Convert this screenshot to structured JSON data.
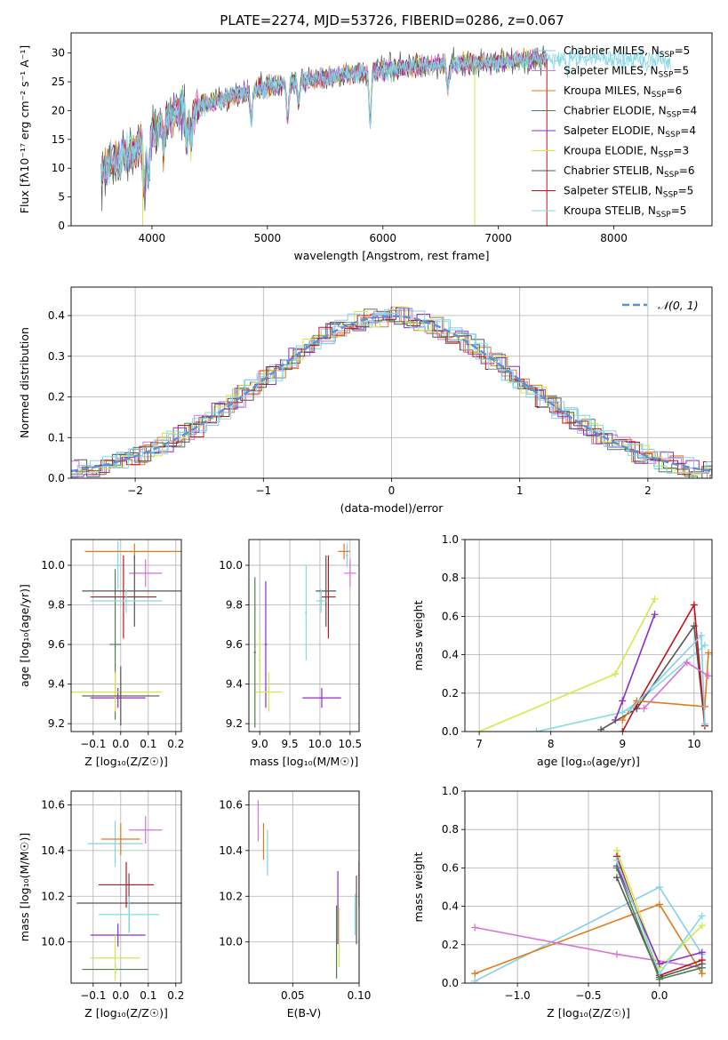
{
  "title": "PLATE=2274, MJD=53726, FIBERID=0286, z=0.067",
  "colors": {
    "Chabrier MILES": "#87CEEB",
    "Salpeter MILES": "#DA70D6",
    "Kroupa MILES": "#E07B1A",
    "Chabrier ELODIE": "#4E7F4E",
    "Salpeter ELODIE": "#8B2FC9",
    "Kroupa ELODIE": "#D4E84A",
    "Chabrier STELIB": "#555555",
    "Salpeter STELIB": "#C0151B",
    "Kroupa STELIB": "#7FDDE0",
    "normal": "#5B8FD9"
  },
  "chart_data": [
    {
      "id": "spectrum",
      "type": "line",
      "xlabel": "wavelength [Angstrom, rest frame]",
      "ylabel": "Flux [fλ10⁻¹⁷ erg cm⁻² s⁻¹ A⁻¹]",
      "xlim": [
        3300,
        8850
      ],
      "ylim": [
        0,
        33.5
      ],
      "xticks": [
        4000,
        5000,
        6000,
        7000,
        8000
      ],
      "yticks": [
        0,
        5,
        10,
        15,
        20,
        25,
        30
      ],
      "legend_position": "top-right",
      "legend": [
        {
          "name": "Chabrier MILES",
          "nssp": "5",
          "sample": "Chabrier MILES"
        },
        {
          "name": "Salpeter MILES",
          "nssp": "5",
          "sample": "Salpeter MILES"
        },
        {
          "name": "Kroupa MILES",
          "nssp": "6",
          "sample": "Kroupa MILES"
        },
        {
          "name": "Chabrier ELODIE",
          "nssp": "4",
          "sample": "Chabrier ELODIE"
        },
        {
          "name": "Salpeter ELODIE",
          "nssp": "4",
          "sample": "Salpeter ELODIE"
        },
        {
          "name": "Kroupa ELODIE",
          "nssp": "3",
          "sample": "Kroupa ELODIE"
        },
        {
          "name": "Chabrier STELIB",
          "nssp": "6",
          "sample": "Chabrier STELIB"
        },
        {
          "name": "Salpeter STELIB",
          "nssp": "5",
          "sample": "Salpeter STELIB"
        },
        {
          "name": "Kroupa STELIB",
          "nssp": "5",
          "sample": "Kroupa STELIB"
        }
      ],
      "continuum": [
        [
          3560,
          9
        ],
        [
          3650,
          11
        ],
        [
          3750,
          12
        ],
        [
          3850,
          13
        ],
        [
          3950,
          15
        ],
        [
          4050,
          17
        ],
        [
          4150,
          19
        ],
        [
          4250,
          20
        ],
        [
          4350,
          20
        ],
        [
          4450,
          21
        ],
        [
          4600,
          22
        ],
        [
          4800,
          23
        ],
        [
          5000,
          24
        ],
        [
          5200,
          25
        ],
        [
          5400,
          25.5
        ],
        [
          5600,
          26
        ],
        [
          5800,
          26.5
        ],
        [
          6000,
          27
        ],
        [
          6200,
          27.5
        ],
        [
          6500,
          28
        ],
        [
          6800,
          28.3
        ],
        [
          7100,
          28.5
        ],
        [
          7400,
          29
        ],
        [
          7700,
          29
        ],
        [
          8000,
          29
        ],
        [
          8300,
          28.8
        ],
        [
          8500,
          28.5
        ]
      ]
    },
    {
      "id": "residuals",
      "type": "histogram",
      "xlabel": "(data-model)/error",
      "ylabel": "Normed distribution",
      "xlim": [
        -2.5,
        2.5
      ],
      "ylim": [
        0,
        0.47
      ],
      "xticks": [
        -2,
        -1,
        0,
        1,
        2
      ],
      "yticks": [
        0.0,
        0.1,
        0.2,
        0.3,
        0.4
      ],
      "normal_label": "𝒩(0, 1)",
      "legend_position": "top-right"
    },
    {
      "id": "age_vs_Z",
      "type": "errorbar",
      "xlabel": "Z [log₁₀(Z/Z☉)]",
      "ylabel": "age  [log₁₀(age/yr)]",
      "xlim": [
        -0.18,
        0.22
      ],
      "ylim": [
        9.16,
        10.13
      ],
      "xticks": [
        -0.1,
        0.0,
        0.1,
        0.2
      ],
      "yticks": [
        9.2,
        9.4,
        9.6,
        9.8,
        10.0
      ],
      "points": [
        {
          "s": "Chabrier MILES",
          "x": -0.01,
          "xe": 0.02,
          "y": 10.0,
          "ye": 0.12
        },
        {
          "s": "Salpeter MILES",
          "x": 0.09,
          "xe": 0.06,
          "y": 9.96,
          "ye": 0.07
        },
        {
          "s": "Kroupa MILES",
          "x": 0.05,
          "xe": 0.18,
          "y": 10.07,
          "ye": 0.04
        },
        {
          "s": "Chabrier ELODIE",
          "x": -0.02,
          "xe": 0.02,
          "y": 9.6,
          "ye": 0.38
        },
        {
          "s": "Salpeter ELODIE",
          "x": -0.01,
          "xe": 0.1,
          "y": 9.33,
          "ye": 0.05
        },
        {
          "s": "Kroupa ELODIE",
          "x": -0.02,
          "xe": 0.17,
          "y": 9.36,
          "ye": 0.1
        },
        {
          "s": "Chabrier STELIB",
          "x": 0.0,
          "xe": 0.14,
          "y": 9.34,
          "ye": 0.15
        },
        {
          "s": "Chabrier STELIB",
          "x": 0.05,
          "xe": 0.19,
          "y": 9.87,
          "ye": 0.18
        },
        {
          "s": "Salpeter STELIB",
          "x": 0.01,
          "xe": 0.12,
          "y": 9.84,
          "ye": 0.21
        },
        {
          "s": "Kroupa STELIB",
          "x": 0.02,
          "xe": 0.13,
          "y": 9.82,
          "ye": 0.06
        }
      ]
    },
    {
      "id": "age_vs_mass",
      "type": "errorbar",
      "xlabel": "mass [log₁₀(M/M☉)]",
      "ylabel": "",
      "xlim": [
        8.82,
        10.65
      ],
      "ylim": [
        9.16,
        10.13
      ],
      "xticks": [
        9.0,
        9.5,
        10.0,
        10.5
      ],
      "yticks": [
        9.2,
        9.4,
        9.6,
        9.8,
        10.0
      ],
      "points": [
        {
          "s": "Chabrier MILES",
          "x": 10.45,
          "xe": 0.02,
          "y": 10.05,
          "ye": 0.06
        },
        {
          "s": "Salpeter MILES",
          "x": 10.5,
          "xe": 0.1,
          "y": 9.96,
          "ye": 0.07
        },
        {
          "s": "Kroupa MILES",
          "x": 10.4,
          "xe": 0.1,
          "y": 10.07,
          "ye": 0.04
        },
        {
          "s": "Chabrier ELODIE",
          "x": 8.92,
          "xe": 0.02,
          "y": 9.56,
          "ye": 0.38
        },
        {
          "s": "Salpeter ELODIE",
          "x": 10.03,
          "xe": 0.32,
          "y": 9.33,
          "ye": 0.05
        },
        {
          "s": "Salpeter ELODIE",
          "x": 9.1,
          "xe": 0.02,
          "y": 9.6,
          "ye": 0.32
        },
        {
          "s": "Kroupa ELODIE",
          "x": 9.15,
          "xe": 0.22,
          "y": 9.36,
          "ye": 0.1
        },
        {
          "s": "Kroupa ELODIE",
          "x": 9.0,
          "xe": 0.02,
          "y": 9.52,
          "ye": 0.15
        },
        {
          "s": "Chabrier STELIB",
          "x": 10.1,
          "xe": 0.17,
          "y": 9.87,
          "ye": 0.18
        },
        {
          "s": "Salpeter STELIB",
          "x": 10.14,
          "xe": 0.12,
          "y": 9.84,
          "ye": 0.21
        },
        {
          "s": "Kroupa STELIB",
          "x": 10.02,
          "xe": 0.08,
          "y": 9.82,
          "ye": 0.06
        },
        {
          "s": "Kroupa STELIB",
          "x": 9.77,
          "xe": 0.02,
          "y": 9.76,
          "ye": 0.24
        }
      ]
    },
    {
      "id": "weight_vs_age",
      "type": "line",
      "xlabel": "age  [log₁₀(age/yr)]",
      "ylabel": "mass weight",
      "xlim": [
        6.8,
        10.25
      ],
      "ylim": [
        0,
        1.0
      ],
      "xticks": [
        7,
        8,
        9,
        10
      ],
      "yticks": [
        0.0,
        0.2,
        0.4,
        0.6,
        0.8,
        1.0
      ],
      "series": [
        {
          "s": "Kroupa ELODIE",
          "x": [
            7.0,
            8.9,
            9.45
          ],
          "y": [
            0.0,
            0.3,
            0.69
          ]
        },
        {
          "s": "Kroupa STELIB",
          "x": [
            7.8,
            9.0,
            9.2,
            10.15
          ],
          "y": [
            0.0,
            0.1,
            0.15,
            0.45
          ]
        },
        {
          "s": "Salpeter ELODIE",
          "x": [
            8.9,
            9.0,
            9.45
          ],
          "y": [
            0.06,
            0.16,
            0.61
          ]
        },
        {
          "s": "Chabrier STELIB",
          "x": [
            8.7,
            9.2,
            10.0,
            10.15
          ],
          "y": [
            0.01,
            0.12,
            0.55,
            0.03
          ]
        },
        {
          "s": "Salpeter STELIB",
          "x": [
            9.0,
            9.2,
            10.0,
            10.15
          ],
          "y": [
            0.0,
            0.14,
            0.66,
            0.03
          ]
        },
        {
          "s": "Kroupa MILES",
          "x": [
            9.0,
            9.2,
            10.15,
            10.2
          ],
          "y": [
            0.06,
            0.16,
            0.13,
            0.41
          ]
        },
        {
          "s": "Chabrier MILES",
          "x": [
            9.1,
            10.1,
            10.15
          ],
          "y": [
            0.11,
            0.5,
            0.04
          ]
        },
        {
          "s": "Salpeter MILES",
          "x": [
            9.3,
            9.9,
            10.2
          ],
          "y": [
            0.12,
            0.36,
            0.29
          ]
        }
      ]
    },
    {
      "id": "mass_vs_Z",
      "type": "errorbar",
      "xlabel": "Z [log₁₀(Z/Z☉)]",
      "ylabel": "mass [log₁₀(M/M☉)]",
      "xlim": [
        -0.18,
        0.22
      ],
      "ylim": [
        9.82,
        10.66
      ],
      "xticks": [
        -0.1,
        0.0,
        0.1,
        0.2
      ],
      "yticks": [
        10.0,
        10.2,
        10.4,
        10.6
      ],
      "points": [
        {
          "s": "Chabrier MILES",
          "x": -0.02,
          "xe": 0.1,
          "y": 10.43,
          "ye": 0.1
        },
        {
          "s": "Salpeter MILES",
          "x": 0.09,
          "xe": 0.06,
          "y": 10.49,
          "ye": 0.06
        },
        {
          "s": "Kroupa MILES",
          "x": 0.0,
          "xe": 0.07,
          "y": 10.45,
          "ye": 0.07
        },
        {
          "s": "Chabrier ELODIE",
          "x": -0.02,
          "xe": 0.12,
          "y": 9.88,
          "ye": 0.02
        },
        {
          "s": "Salpeter ELODIE",
          "x": -0.01,
          "xe": 0.1,
          "y": 10.03,
          "ye": 0.05
        },
        {
          "s": "Kroupa ELODIE",
          "x": -0.02,
          "xe": 0.09,
          "y": 9.93,
          "ye": 0.1
        },
        {
          "s": "Chabrier STELIB",
          "x": 0.03,
          "xe": 0.19,
          "y": 10.17,
          "ye": 0.13
        },
        {
          "s": "Salpeter STELIB",
          "x": 0.02,
          "xe": 0.1,
          "y": 10.25,
          "ye": 0.1
        },
        {
          "s": "Kroupa STELIB",
          "x": 0.03,
          "xe": 0.11,
          "y": 10.12,
          "ye": 0.08
        }
      ]
    },
    {
      "id": "mass_vs_ebv",
      "type": "errorbar",
      "xlabel": "E(B-V)",
      "ylabel": "",
      "xlim": [
        0.017,
        0.1
      ],
      "ylim": [
        9.82,
        10.66
      ],
      "xticks": [
        0.05,
        0.1
      ],
      "yticks": [
        10.0,
        10.2,
        10.4,
        10.6
      ],
      "points": [
        {
          "s": "Salpeter MILES",
          "x": 0.024,
          "y": 10.53,
          "ye": 0.09
        },
        {
          "s": "Kroupa MILES",
          "x": 0.028,
          "y": 10.44,
          "ye": 0.08
        },
        {
          "s": "Chabrier MILES",
          "x": 0.031,
          "y": 10.39,
          "ye": 0.1
        },
        {
          "s": "Chabrier ELODIE",
          "x": 0.083,
          "y": 10.0,
          "ye": 0.16
        },
        {
          "s": "Salpeter ELODIE",
          "x": 0.084,
          "y": 10.15,
          "ye": 0.16
        },
        {
          "s": "Kroupa ELODIE",
          "x": 0.085,
          "y": 10.02,
          "ye": 0.13
        },
        {
          "s": "Chabrier STELIB",
          "x": 0.098,
          "y": 10.14,
          "ye": 0.15
        },
        {
          "s": "Kroupa STELIB",
          "x": 0.097,
          "y": 10.12,
          "ye": 0.09
        },
        {
          "s": "Salpeter STELIB",
          "x": 0.1,
          "y": 10.25,
          "ye": 0.1
        }
      ]
    },
    {
      "id": "weight_vs_Z",
      "type": "line",
      "xlabel": "Z [log₁₀(Z/Z☉)]",
      "ylabel": "mass weight",
      "xlim": [
        -1.37,
        0.37
      ],
      "ylim": [
        0,
        1.0
      ],
      "xticks": [
        -1.0,
        -0.5,
        0.0
      ],
      "yticks": [
        0.0,
        0.2,
        0.4,
        0.6,
        0.8,
        1.0
      ],
      "series": [
        {
          "s": "Chabrier MILES",
          "x": [
            -1.3,
            0.0,
            0.3
          ],
          "y": [
            0.01,
            0.5,
            0.15
          ]
        },
        {
          "s": "Kroupa MILES",
          "x": [
            -1.3,
            0.0,
            0.3
          ],
          "y": [
            0.05,
            0.41,
            0.05
          ]
        },
        {
          "s": "Salpeter MILES",
          "x": [
            -1.3,
            -0.3,
            0.3
          ],
          "y": [
            0.29,
            0.15,
            0.08
          ]
        },
        {
          "s": "Kroupa ELODIE",
          "x": [
            -0.3,
            0.0,
            0.3
          ],
          "y": [
            0.69,
            0.08,
            0.3
          ]
        },
        {
          "s": "Salpeter ELODIE",
          "x": [
            -0.3,
            0.0,
            0.3
          ],
          "y": [
            0.61,
            0.1,
            0.16
          ]
        },
        {
          "s": "Chabrier STELIB",
          "x": [
            -0.3,
            0.0,
            0.3
          ],
          "y": [
            0.55,
            0.03,
            0.1
          ]
        },
        {
          "s": "Salpeter STELIB",
          "x": [
            -0.3,
            0.0,
            0.3
          ],
          "y": [
            0.66,
            0.04,
            0.12
          ]
        },
        {
          "s": "Kroupa STELIB",
          "x": [
            -0.3,
            0.0,
            0.3
          ],
          "y": [
            0.64,
            0.05,
            0.35
          ]
        },
        {
          "s": "Chabrier ELODIE",
          "x": [
            -0.3,
            0.0,
            0.3
          ],
          "y": [
            0.6,
            0.02,
            0.08
          ]
        }
      ]
    }
  ]
}
